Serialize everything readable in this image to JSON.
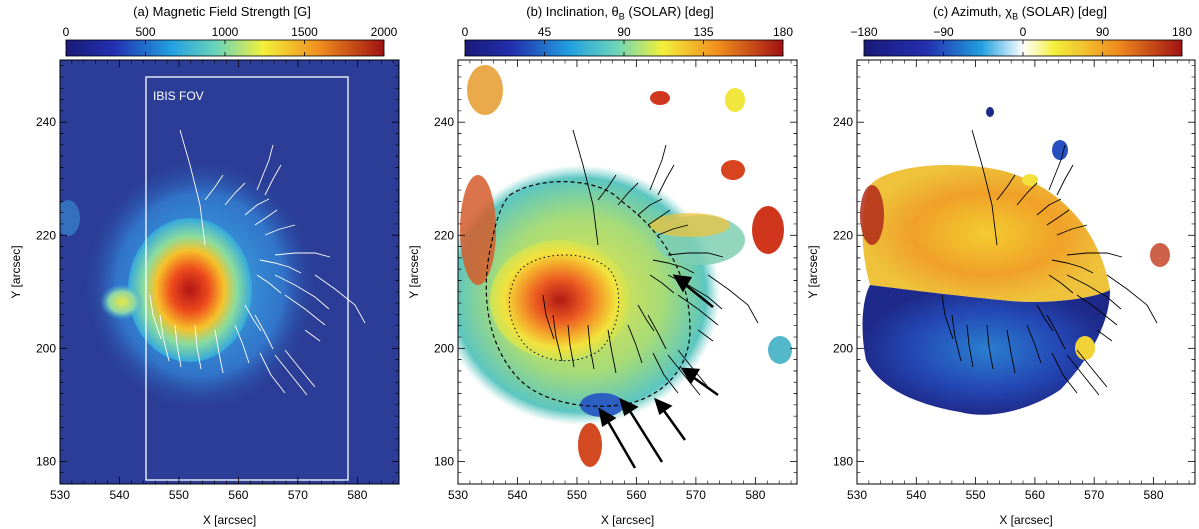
{
  "chart_data": [
    {
      "type": "heatmap",
      "title": "(a) Magnetic Field Strength [G]",
      "colorbar": {
        "ticks": [
          {
            "value": 0,
            "label": "0"
          },
          {
            "value": 500,
            "label": "500"
          },
          {
            "value": 1000,
            "label": "1000"
          },
          {
            "value": 1500,
            "label": "1500"
          },
          {
            "value": 2000,
            "label": "2000"
          }
        ],
        "range": [
          0,
          2000
        ]
      },
      "xlabel": "X [arcsec]",
      "ylabel": "Y [arcsec]",
      "xlim": [
        530,
        587
      ],
      "ylim": [
        176,
        251
      ],
      "xticks": [
        "530",
        "540",
        "550",
        "560",
        "570",
        "580"
      ],
      "yticks": [
        "180",
        "200",
        "220",
        "240"
      ],
      "annotation": "IBIS FOV",
      "fov_box": {
        "x0": 544.5,
        "x1": 581.0,
        "y0": 180.0,
        "y1": 248.0
      },
      "line_color": "#ffffff",
      "background_color": "#2b3d96"
    },
    {
      "type": "heatmap",
      "title_parts": [
        "(b) Inclination, θ",
        "B",
        " (SOLAR) [deg]"
      ],
      "colorbar": {
        "ticks": [
          {
            "value": 0,
            "label": "0"
          },
          {
            "value": 45,
            "label": "45"
          },
          {
            "value": 90,
            "label": "90"
          },
          {
            "value": 135,
            "label": "135"
          },
          {
            "value": 180,
            "label": "180"
          }
        ],
        "range": [
          0,
          180
        ]
      },
      "xlabel": "X [arcsec]",
      "ylabel": "Y [arcsec]",
      "xlim": [
        530,
        587
      ],
      "ylim": [
        176,
        251
      ],
      "xticks": [
        "530",
        "540",
        "550",
        "560",
        "570",
        "580"
      ],
      "yticks": [
        "180",
        "200",
        "220",
        "240"
      ],
      "line_color": "#000000",
      "arrows": 5
    },
    {
      "type": "heatmap",
      "title_parts": [
        "(c) Azimuth, χ",
        "B",
        " (SOLAR) [deg]"
      ],
      "colorbar": {
        "ticks": [
          {
            "value": -180,
            "label": "−180"
          },
          {
            "value": -90,
            "label": "−90"
          },
          {
            "value": 0,
            "label": "0"
          },
          {
            "value": 90,
            "label": "90"
          },
          {
            "value": 180,
            "label": "180"
          }
        ],
        "range": [
          -180,
          180
        ]
      },
      "xlabel": "X [arcsec]",
      "ylabel": "Y [arcsec]",
      "xlim": [
        530,
        587
      ],
      "ylim": [
        176,
        251
      ],
      "xticks": [
        "530",
        "540",
        "550",
        "560",
        "570",
        "580"
      ],
      "yticks": [
        "180",
        "200",
        "220",
        "240"
      ],
      "line_color": "#000000"
    }
  ]
}
